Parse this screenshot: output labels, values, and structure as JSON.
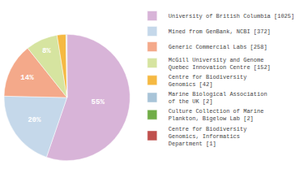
{
  "chart_data": {
    "type": "pie",
    "categories": [
      "University of British Columbia [1025]",
      "Mined from GenBank, NCBI [372]",
      "Generic Commercial Labs [258]",
      "McGill University and Genome\nQuebec Innovation Centre [152]",
      "Centre for Biodiversity\nGenomics [42]",
      "Marine Biological Association\nof the UK [2]",
      "Culture Collection of Marine\nPlankton, Bigelow Lab [2]",
      "Centre for Biodiversity\nGenomics, Informatics\nDepartment [1]"
    ],
    "values": [
      55.29,
      20.06,
      13.92,
      8.2,
      2.27,
      0.11,
      0.11,
      0.05
    ],
    "value_labels": [
      "55%",
      "20%",
      "14%",
      "8%",
      null,
      null,
      null,
      null
    ],
    "colors": [
      "#d8b4d8",
      "#c5d8ea",
      "#f4a98a",
      "#d6e4a0",
      "#f5b942",
      "#a8c4d8",
      "#70ad47",
      "#c0504d"
    ],
    "legend": "right"
  }
}
